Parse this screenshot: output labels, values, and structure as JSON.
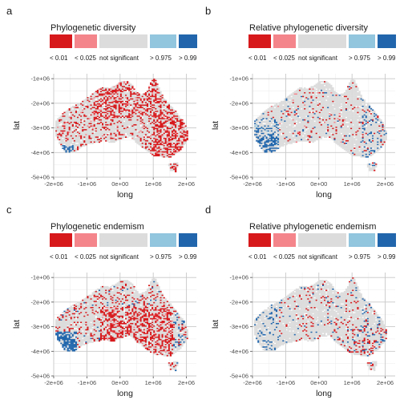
{
  "colors": {
    "lt_0_01": "#D7191C",
    "lt_0_025": "#F4858B",
    "not_significant": "#DCDCDC",
    "gt_0_975": "#92C5DE",
    "gt_0_99": "#2166AC"
  },
  "chart_data": [
    {
      "type": "heatmap",
      "panel": "a",
      "title": "Phylogenetic diversity",
      "xlabel": "long",
      "ylabel": "lat",
      "xlim": [
        -2000000,
        2300000
      ],
      "ylim": [
        -5000000,
        -800000
      ],
      "x_ticks": [
        "-2e+06",
        "-1e+06",
        "0e+00",
        "1e+06",
        "2e+06"
      ],
      "y_ticks": [
        "-1e+06",
        "-2e+06",
        "-3e+06",
        "-4e+06",
        "-5e+06"
      ],
      "legend": [
        "< 0.01",
        "< 0.025",
        "not significant",
        "> 0.975",
        "> 0.99"
      ],
      "pattern": "many cells < 0.01 across the north, east and interior; a few > 0.99 cells in the south-west; rest not significant",
      "grid": "on"
    },
    {
      "type": "heatmap",
      "panel": "b",
      "title": "Relative phylogenetic diversity",
      "xlabel": "long",
      "ylabel": "lat",
      "xlim": [
        -2000000,
        2300000
      ],
      "ylim": [
        -5000000,
        -800000
      ],
      "x_ticks": [
        "-2e+06",
        "-1e+06",
        "0e+00",
        "1e+06",
        "2e+06"
      ],
      "y_ticks": [
        "-1e+06",
        "-2e+06",
        "-3e+06",
        "-4e+06",
        "-5e+06"
      ],
      "legend": [
        "< 0.01",
        "< 0.025",
        "not significant",
        "> 0.975",
        "> 0.99"
      ],
      "pattern": "dense > 0.99 cells in the south-west corner and scattered along the east coast; scattered < 0.01 cells; mostly not significant",
      "grid": "on"
    },
    {
      "type": "heatmap",
      "panel": "c",
      "title": "Phylogenetic endemism",
      "xlabel": "long",
      "ylabel": "lat",
      "xlim": [
        -2000000,
        2300000
      ],
      "ylim": [
        -5000000,
        -800000
      ],
      "x_ticks": [
        "-2e+06",
        "-1e+06",
        "0e+00",
        "1e+06",
        "2e+06"
      ],
      "y_ticks": [
        "-1e+06",
        "-2e+06",
        "-3e+06",
        "-4e+06",
        "-5e+06"
      ],
      "legend": [
        "< 0.01",
        "< 0.025",
        "not significant",
        "> 0.975",
        "> 0.99"
      ],
      "pattern": "many < 0.01 cells across the centre and south-east; > 0.99 cluster in the south-west; scattered > 0.99 along east coast",
      "grid": "on"
    },
    {
      "type": "heatmap",
      "panel": "d",
      "title": "Relative phylogenetic endemism",
      "xlabel": "long",
      "ylabel": "lat",
      "xlim": [
        -2000000,
        2300000
      ],
      "ylim": [
        -5000000,
        -800000
      ],
      "x_ticks": [
        "-2e+06",
        "-1e+06",
        "0e+00",
        "1e+06",
        "2e+06"
      ],
      "y_ticks": [
        "-1e+06",
        "-2e+06",
        "-3e+06",
        "-4e+06",
        "-5e+06"
      ],
      "legend": [
        "< 0.01",
        "< 0.025",
        "not significant",
        "> 0.975",
        "> 0.99"
      ],
      "pattern": "mostly not significant; scattered > 0.99 in west and east; scattered < 0.01 in south-east",
      "grid": "on"
    }
  ]
}
